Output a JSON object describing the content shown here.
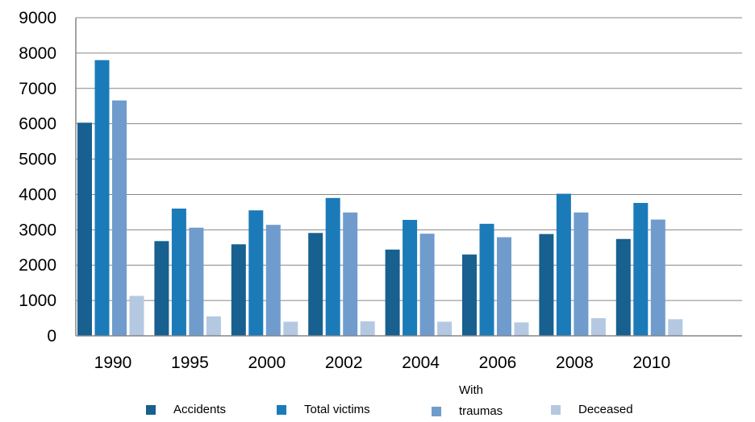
{
  "chart_data": {
    "type": "bar",
    "categories": [
      "1990",
      "1995",
      "2000",
      "2002",
      "2004",
      "2006",
      "2008",
      "2010"
    ],
    "series": [
      {
        "name": "Accidents",
        "color": "#17608f",
        "values": [
          6030,
          2680,
          2590,
          2910,
          2440,
          2300,
          2880,
          2740
        ]
      },
      {
        "name": "Total victims",
        "color": "#1b7bb8",
        "values": [
          7800,
          3600,
          3550,
          3900,
          3280,
          3170,
          4020,
          3760
        ]
      },
      {
        "name": "With traumas",
        "color": "#6f9ccc",
        "values": [
          6660,
          3060,
          3140,
          3490,
          2890,
          2790,
          3490,
          3290
        ]
      },
      {
        "name": "Deceased",
        "color": "#b4c9e1",
        "values": [
          1130,
          550,
          400,
          410,
          400,
          380,
          500,
          470
        ]
      }
    ],
    "yticks": [
      "0",
      "1000",
      "2000",
      "3000",
      "4000",
      "5000",
      "6000",
      "7000",
      "8000",
      "9000"
    ],
    "ylim": [
      0,
      9000
    ],
    "grid": true,
    "legend_position": "bottom",
    "title": "",
    "xlabel": "",
    "ylabel": ""
  },
  "legend": [
    {
      "label": "Accidents",
      "color": "#17608f"
    },
    {
      "label": "Total victims",
      "color": "#1b7bb8"
    },
    {
      "label": "With\ntraumas",
      "color": "#6f9ccc"
    },
    {
      "label": "Deceased",
      "color": "#b4c9e1"
    }
  ]
}
